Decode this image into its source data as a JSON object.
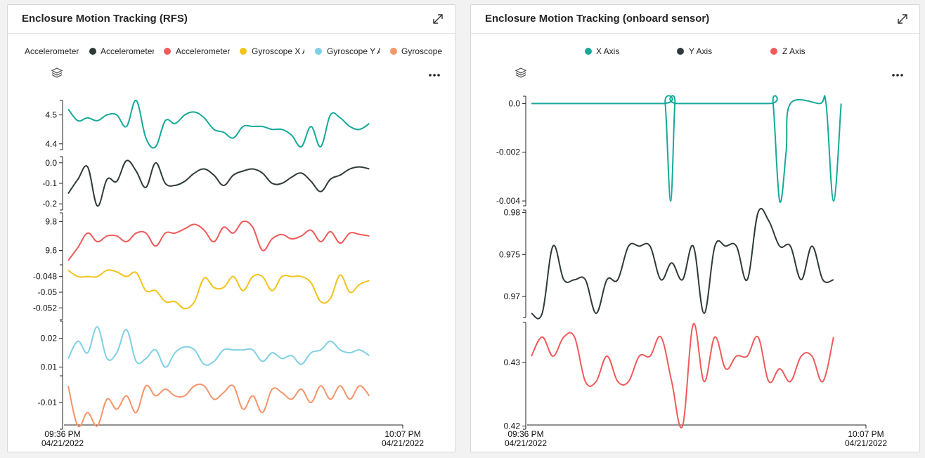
{
  "panels": [
    {
      "title": "Enclosure Motion Tracking (RFS)",
      "legend": [
        {
          "label": "Accelerometer",
          "color": ""
        },
        {
          "label": "Accelerometer",
          "color": "#2f3a3a"
        },
        {
          "label": "Accelerometer",
          "color": "#f05a5a"
        },
        {
          "label": "Gyroscope X A",
          "color": "#f2c31a"
        },
        {
          "label": "Gyroscope Y A",
          "color": "#7fd0e4"
        },
        {
          "label": "Gyroscope",
          "color": "#f4956a"
        }
      ],
      "icons": {
        "expand": "expand-arrows-icon",
        "layers": "layers-icon",
        "more": "more-dots-icon"
      }
    },
    {
      "title": "Enclosure Motion Tracking (onboard sensor)",
      "legend": [
        {
          "label": "X Axis",
          "color": "#16a99a"
        },
        {
          "label": "Y Axis",
          "color": "#2f3a3a"
        },
        {
          "label": "Z Axis",
          "color": "#f05a5a"
        }
      ],
      "icons": {
        "expand": "expand-arrows-icon",
        "layers": "layers-icon",
        "more": "more-dots-icon"
      }
    }
  ],
  "chart_data": [
    {
      "type": "line",
      "title": "Enclosure Motion Tracking (RFS)",
      "x_ticks": [
        [
          "09:36 PM",
          "04/21/2022"
        ],
        [
          "10:07 PM",
          "04/21/2022"
        ]
      ],
      "x_range": [
        0,
        31
      ],
      "grid": false,
      "legend_placement": "top",
      "series": [
        {
          "color": "#16a99a",
          "yticks": [
            "4.5",
            "4.4"
          ],
          "ytick_values": [
            4.5,
            4.4
          ],
          "ylim": [
            4.38,
            4.55
          ],
          "x": [
            0,
            0.9,
            1.8,
            2.7,
            3.6,
            4.5,
            5.4,
            6.3,
            7.2,
            8.1,
            9,
            9.9,
            10.8,
            11.7,
            12.6,
            13.5,
            14.4,
            15.3,
            16.2,
            17.1,
            18,
            18.9,
            19.8,
            20.7,
            21.6,
            22.5,
            23.4,
            24.3,
            25.2,
            26.1,
            27,
            27.9
          ],
          "values": [
            4.52,
            4.48,
            4.49,
            4.48,
            4.5,
            4.5,
            4.46,
            4.55,
            4.42,
            4.39,
            4.48,
            4.47,
            4.5,
            4.51,
            4.49,
            4.45,
            4.44,
            4.42,
            4.46,
            4.46,
            4.46,
            4.45,
            4.45,
            4.43,
            4.39,
            4.46,
            4.39,
            4.5,
            4.49,
            4.46,
            4.45,
            4.47
          ]
        },
        {
          "color": "#2f3a3a",
          "yticks": [
            "0.0",
            "-0.1",
            "-0.2"
          ],
          "ytick_values": [
            0,
            -0.1,
            -0.2
          ],
          "ylim": [
            -0.23,
            0.03
          ],
          "x": [
            0,
            0.9,
            1.8,
            2.7,
            3.6,
            4.5,
            5.4,
            6.3,
            7.2,
            8.1,
            9,
            9.9,
            10.8,
            11.7,
            12.6,
            13.5,
            14.4,
            15.3,
            16.2,
            17.1,
            18,
            18.9,
            19.8,
            20.7,
            21.6,
            22.5,
            23.4,
            24.3,
            25.2,
            26.1,
            27,
            27.9
          ],
          "values": [
            -0.15,
            -0.08,
            -0.02,
            -0.21,
            -0.08,
            -0.09,
            0.01,
            -0.04,
            -0.12,
            0.0,
            -0.1,
            -0.11,
            -0.09,
            -0.05,
            -0.03,
            -0.06,
            -0.11,
            -0.06,
            -0.04,
            -0.03,
            -0.05,
            -0.1,
            -0.1,
            -0.07,
            -0.05,
            -0.09,
            -0.14,
            -0.08,
            -0.06,
            -0.03,
            -0.02,
            -0.03
          ]
        },
        {
          "color": "#f05a5a",
          "yticks": [
            "9.8",
            "9.6"
          ],
          "ytick_values": [
            9.8,
            9.6
          ],
          "ylim": [
            9.5,
            9.86
          ],
          "x": [
            0,
            0.9,
            1.8,
            2.7,
            3.6,
            4.5,
            5.4,
            6.3,
            7.2,
            8.1,
            9,
            9.9,
            10.8,
            11.7,
            12.6,
            13.5,
            14.4,
            15.3,
            16.2,
            17.1,
            18,
            18.9,
            19.8,
            20.7,
            21.6,
            22.5,
            23.4,
            24.3,
            25.2,
            26.1,
            27,
            27.9
          ],
          "values": [
            9.53,
            9.62,
            9.72,
            9.66,
            9.7,
            9.7,
            9.66,
            9.72,
            9.72,
            9.63,
            9.72,
            9.72,
            9.75,
            9.78,
            9.74,
            9.66,
            9.76,
            9.72,
            9.8,
            9.76,
            9.6,
            9.68,
            9.71,
            9.68,
            9.7,
            9.74,
            9.66,
            9.73,
            9.65,
            9.72,
            9.71,
            9.7
          ]
        },
        {
          "color": "#f2c31a",
          "yticks": [
            "-0.048",
            "-0.05",
            "-0.052"
          ],
          "ytick_values": [
            -0.048,
            -0.05,
            -0.052
          ],
          "ylim": [
            -0.0535,
            -0.0465
          ],
          "x": [
            0,
            0.9,
            1.8,
            2.7,
            3.6,
            4.5,
            5.4,
            6.3,
            7.2,
            8.1,
            9,
            9.9,
            10.8,
            11.7,
            12.6,
            13.5,
            14.4,
            15.3,
            16.2,
            17.1,
            18,
            18.9,
            19.8,
            20.7,
            21.6,
            22.5,
            23.4,
            24.3,
            25.2,
            26.1,
            27,
            27.9
          ],
          "values": [
            -0.0472,
            -0.048,
            -0.048,
            -0.048,
            -0.0472,
            -0.0474,
            -0.048,
            -0.0475,
            -0.0498,
            -0.0498,
            -0.0512,
            -0.0512,
            -0.0521,
            -0.0512,
            -0.0482,
            -0.0494,
            -0.0494,
            -0.048,
            -0.0498,
            -0.048,
            -0.048,
            -0.0498,
            -0.048,
            -0.048,
            -0.048,
            -0.0488,
            -0.0512,
            -0.0508,
            -0.0478,
            -0.05,
            -0.049,
            -0.0485
          ]
        },
        {
          "color": "#7fd0e4",
          "yticks": [
            "0.02",
            "0.01"
          ],
          "ytick_values": [
            0.02,
            0.01
          ],
          "ylim": [
            0.007,
            0.026
          ],
          "x": [
            0,
            0.9,
            1.8,
            2.7,
            3.6,
            4.5,
            5.4,
            6.3,
            7.2,
            8.1,
            9,
            9.9,
            10.8,
            11.7,
            12.6,
            13.5,
            14.4,
            15.3,
            16.2,
            17.1,
            18,
            18.9,
            19.8,
            20.7,
            21.6,
            22.5,
            23.4,
            24.3,
            25.2,
            26.1,
            27,
            27.9
          ],
          "values": [
            0.013,
            0.019,
            0.015,
            0.024,
            0.013,
            0.015,
            0.023,
            0.012,
            0.013,
            0.016,
            0.01,
            0.015,
            0.017,
            0.016,
            0.011,
            0.012,
            0.016,
            0.016,
            0.016,
            0.016,
            0.012,
            0.015,
            0.013,
            0.014,
            0.011,
            0.015,
            0.016,
            0.019,
            0.016,
            0.015,
            0.016,
            0.014
          ]
        },
        {
          "color": "#f4956a",
          "yticks": [
            "-0.01"
          ],
          "ytick_values": [
            -0.01
          ],
          "ylim": [
            -0.018,
            -0.002
          ],
          "x": [
            0,
            0.9,
            1.8,
            2.7,
            3.6,
            4.5,
            5.4,
            6.3,
            7.2,
            8.1,
            9,
            9.9,
            10.8,
            11.7,
            12.6,
            13.5,
            14.4,
            15.3,
            16.2,
            17.1,
            18,
            18.9,
            19.8,
            20.7,
            21.6,
            22.5,
            23.4,
            24.3,
            25.2,
            26.1,
            27,
            27.9
          ],
          "values": [
            -0.005,
            -0.017,
            -0.013,
            -0.017,
            -0.009,
            -0.012,
            -0.008,
            -0.013,
            -0.005,
            -0.008,
            -0.006,
            -0.008,
            -0.008,
            -0.005,
            -0.005,
            -0.009,
            -0.007,
            -0.005,
            -0.012,
            -0.008,
            -0.013,
            -0.006,
            -0.007,
            -0.009,
            -0.006,
            -0.01,
            -0.005,
            -0.009,
            -0.005,
            -0.009,
            -0.005,
            -0.008
          ]
        }
      ]
    },
    {
      "type": "line",
      "title": "Enclosure Motion Tracking (onboard sensor)",
      "x_ticks": [
        [
          "09:36 PM",
          "04/21/2022"
        ],
        [
          "10:07 PM",
          "04/21/2022"
        ]
      ],
      "x_range": [
        0,
        31
      ],
      "grid": false,
      "legend_placement": "top",
      "series": [
        {
          "name": "X Axis",
          "color": "#16a99a",
          "yticks": [
            "0.0",
            "-0.002",
            "-0.004"
          ],
          "ytick_values": [
            0,
            -0.002,
            -0.004
          ],
          "ylim": [
            -0.0042,
            0.0003
          ],
          "x": [
            0,
            12,
            12.4,
            12.9,
            13.3,
            13.6,
            22,
            22.4,
            23,
            23.6,
            24,
            26.7,
            27.3,
            28,
            28.7
          ],
          "values": [
            0,
            0,
            0,
            -0.004,
            0,
            0,
            0,
            0,
            -0.004,
            -0.002,
            0,
            0,
            0,
            -0.004,
            0
          ]
        },
        {
          "name": "Y Axis",
          "color": "#2f3a3a",
          "yticks": [
            "0.98",
            "0.975",
            "0.97"
          ],
          "ytick_values": [
            0.98,
            0.975,
            0.97
          ],
          "ylim": [
            0.9675,
            0.9803
          ],
          "x": [
            0,
            1,
            2,
            3,
            4,
            5,
            6,
            7,
            8,
            9,
            10,
            11,
            12,
            13,
            14,
            15,
            16,
            17,
            18,
            19,
            20,
            21,
            22,
            23,
            24,
            25,
            26,
            27,
            28
          ],
          "values": [
            0.968,
            0.968,
            0.976,
            0.972,
            0.972,
            0.972,
            0.968,
            0.972,
            0.972,
            0.976,
            0.976,
            0.976,
            0.972,
            0.974,
            0.972,
            0.976,
            0.968,
            0.976,
            0.976,
            0.976,
            0.972,
            0.98,
            0.979,
            0.976,
            0.976,
            0.972,
            0.976,
            0.972,
            0.972
          ]
        },
        {
          "name": "Z Axis",
          "color": "#f05a5a",
          "yticks": [
            "0.43",
            "0.42"
          ],
          "ytick_values": [
            0.43,
            0.42
          ],
          "ylim": [
            0.4195,
            0.4363
          ],
          "x": [
            0,
            1,
            2,
            3,
            4,
            5,
            6,
            7,
            8,
            9,
            10,
            11,
            12,
            13,
            14,
            15,
            16,
            17,
            18,
            19,
            20,
            21,
            22,
            23,
            24,
            25,
            26,
            27,
            28
          ],
          "values": [
            0.431,
            0.434,
            0.431,
            0.434,
            0.434,
            0.427,
            0.427,
            0.431,
            0.427,
            0.427,
            0.431,
            0.431,
            0.434,
            0.427,
            0.42,
            0.436,
            0.427,
            0.434,
            0.429,
            0.431,
            0.431,
            0.434,
            0.427,
            0.429,
            0.427,
            0.431,
            0.431,
            0.427,
            0.434
          ]
        }
      ]
    }
  ]
}
